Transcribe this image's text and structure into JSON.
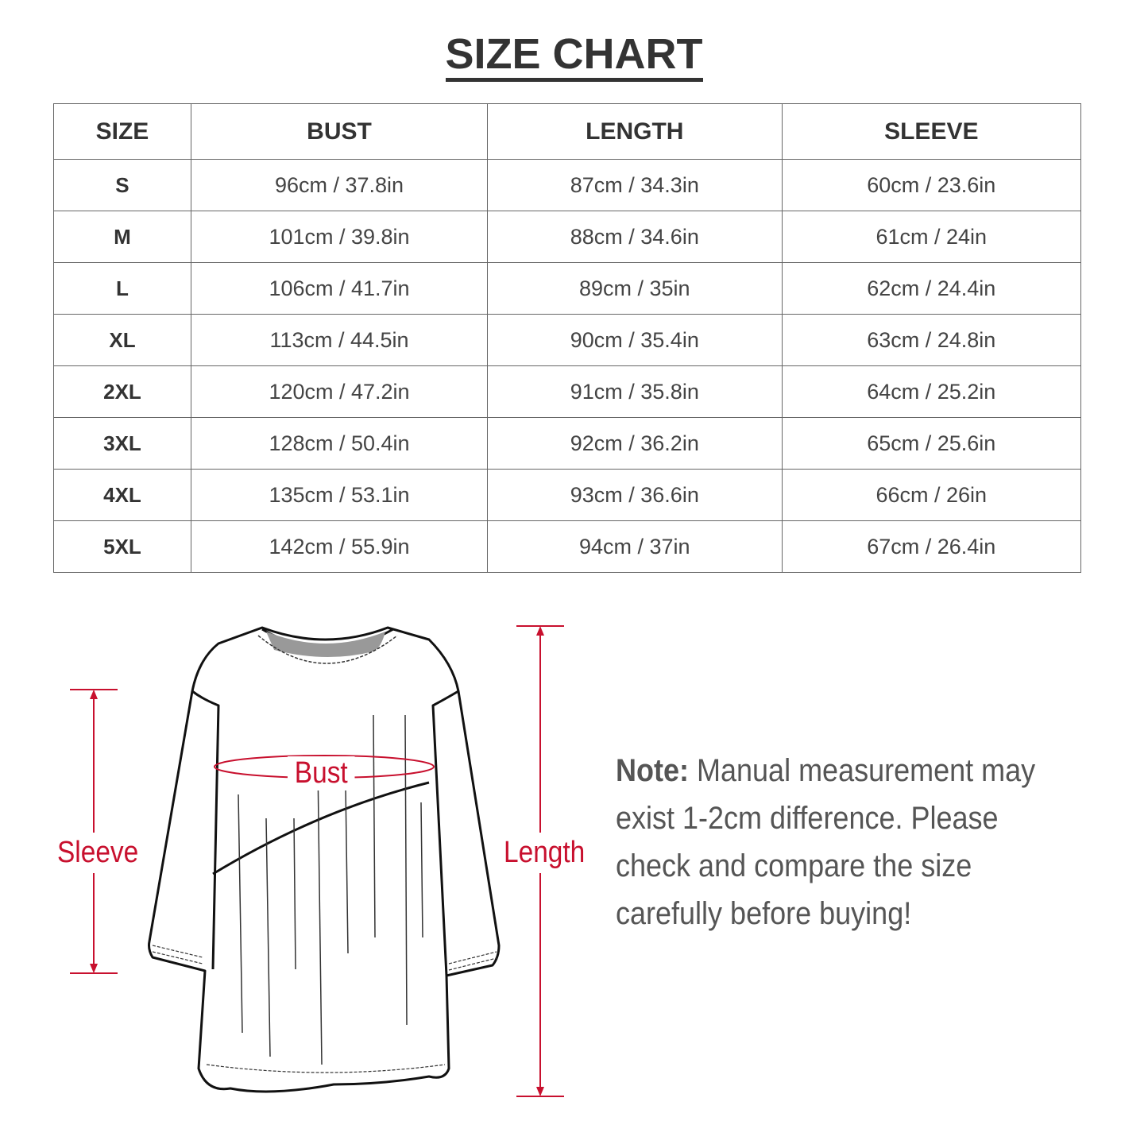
{
  "title": "SIZE CHART",
  "table": {
    "headers": [
      "SIZE",
      "BUST",
      "LENGTH",
      "SLEEVE"
    ],
    "rows": [
      [
        "S",
        "96cm / 37.8in",
        "87cm / 34.3in",
        "60cm / 23.6in"
      ],
      [
        "M",
        "101cm / 39.8in",
        "88cm / 34.6in",
        "61cm / 24in"
      ],
      [
        "L",
        "106cm / 41.7in",
        "89cm / 35in",
        "62cm / 24.4in"
      ],
      [
        "XL",
        "113cm / 44.5in",
        "90cm / 35.4in",
        "63cm / 24.8in"
      ],
      [
        "2XL",
        "120cm / 47.2in",
        "91cm / 35.8in",
        "64cm / 25.2in"
      ],
      [
        "3XL",
        "128cm / 50.4in",
        "92cm / 36.2in",
        "65cm / 25.6in"
      ],
      [
        "4XL",
        "135cm / 53.1in",
        "93cm / 36.6in",
        "66cm / 26in"
      ],
      [
        "5XL",
        "142cm / 55.9in",
        "94cm / 37in",
        "67cm / 26.4in"
      ]
    ]
  },
  "diagram": {
    "bust_label": "Bust",
    "sleeve_label": "Sleeve",
    "length_label": "Length",
    "accent_color": "#c8102e"
  },
  "note": {
    "label": "Note:",
    "text": " Manual measurement may exist 1-2cm difference. Please check and compare the size carefully before buying!"
  }
}
